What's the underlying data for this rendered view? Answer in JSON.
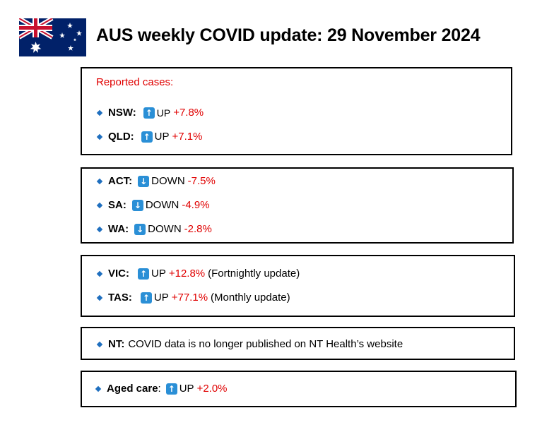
{
  "header": {
    "title": "AUS weekly COVID update: 29 November 2024",
    "flag_icon": "australian-flag"
  },
  "colors": {
    "accent_red": "#e00000",
    "bullet_blue": "#1f6fbf",
    "arrow_blue": "#2a8fd6"
  },
  "box1": {
    "heading": "Reported cases:",
    "rows": [
      {
        "state": "NSW:",
        "direction": "UP",
        "arrow": "up-arrow-icon",
        "change": "+7.8%"
      },
      {
        "state": "QLD:",
        "direction": "UP",
        "arrow": "up-arrow-icon",
        "change": "+7.1%"
      }
    ]
  },
  "box2": {
    "rows": [
      {
        "state": "ACT:",
        "direction": "DOWN",
        "arrow": "down-arrow-icon",
        "change": "-7.5%"
      },
      {
        "state": "SA:",
        "direction": "DOWN",
        "arrow": "down-arrow-icon",
        "change": "-4.9%"
      },
      {
        "state": "WA:",
        "direction": "DOWN",
        "arrow": "down-arrow-icon",
        "change": "-2.8%"
      }
    ]
  },
  "box3": {
    "rows": [
      {
        "state": "VIC:",
        "direction": "UP",
        "arrow": "up-arrow-icon",
        "change": "+12.8%",
        "note": "(Fortnightly update)"
      },
      {
        "state": "TAS:",
        "direction": "UP",
        "arrow": "up-arrow-icon",
        "change": "+77.1%",
        "note": "(Monthly update)"
      }
    ]
  },
  "box4": {
    "state": "NT:",
    "text": "COVID data is no longer published on NT Health’s website"
  },
  "box5": {
    "label": "Aged care",
    "colon": ":",
    "direction": "UP",
    "arrow": "up-arrow-icon",
    "change": "+2.0%"
  }
}
